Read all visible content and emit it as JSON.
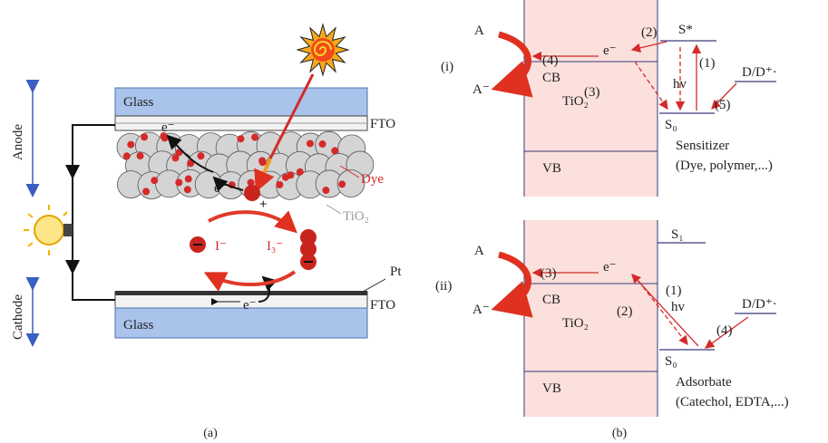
{
  "panel_a": {
    "caption": "(a)",
    "anode": "Anode",
    "cathode": "Cathode",
    "top_glass": "Glass",
    "top_fto": "FTO",
    "top_electron": "e⁻",
    "dye": "Dye",
    "particle_electron": "e⁻",
    "hole": "+",
    "tio2": "TiO₂",
    "iodide": "I⁻",
    "triiodide": "I₃⁻",
    "pt": "Pt",
    "bottom_fto": "FTO",
    "bottom_glass": "Glass",
    "bottom_electron": "e⁻"
  },
  "panel_b": {
    "caption": "(b)",
    "diagrams": [
      {
        "label": "(i)",
        "acceptor": "A",
        "reduced_acceptor": "A⁻",
        "cb": "CB",
        "vb": "VB",
        "semiconductor": "TiO₂",
        "electron": "e⁻",
        "excited_state": "S*",
        "ground_state": "S₀",
        "donor": "D/D⁺·",
        "photon": "hv",
        "species": "Sensitizer",
        "examples": "(Dye, polymer,...)",
        "steps": [
          "(1)",
          "(2)",
          "(3)",
          "(4)",
          "(5)"
        ]
      },
      {
        "label": "(ii)",
        "acceptor": "A",
        "reduced_acceptor": "A⁻",
        "cb": "CB",
        "vb": "VB",
        "semiconductor": "TiO₂",
        "electron": "e⁻",
        "upper_state": "S₁",
        "ground_state": "S₀",
        "donor": "D/D⁺·",
        "photon": "hv",
        "species": "Adsorbate",
        "examples": "(Catechol, EDTA,...)",
        "steps": [
          "(1)",
          "(2)",
          "(3)",
          "(4)"
        ]
      }
    ]
  }
}
